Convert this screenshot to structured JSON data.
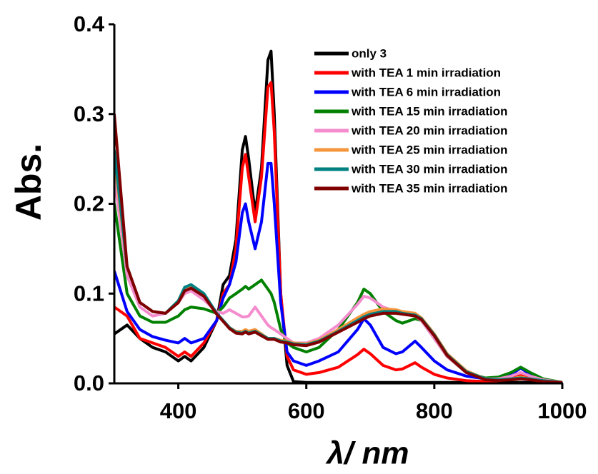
{
  "chart_data": {
    "type": "line",
    "xlabel": "λ/ nm",
    "ylabel": "Abs.",
    "xlim": [
      300,
      1000
    ],
    "xticks": [
      400,
      600,
      800,
      1000
    ],
    "ylim": [
      0,
      0.4
    ],
    "yticks": [
      {
        "value": 0,
        "label": "0.0"
      },
      0.1,
      0.2,
      0.3,
      0.4
    ],
    "legend": "upper right",
    "x": [
      300,
      320,
      340,
      360,
      380,
      400,
      410,
      420,
      440,
      460,
      470,
      480,
      490,
      500,
      505,
      510,
      520,
      530,
      540,
      545,
      550,
      560,
      570,
      580,
      600,
      620,
      650,
      680,
      690,
      700,
      720,
      740,
      750,
      770,
      780,
      800,
      820,
      850,
      880,
      900,
      920,
      935,
      950,
      970,
      1000
    ],
    "series": [
      {
        "name": "only 3",
        "color": "#000000",
        "values": [
          0.055,
          0.065,
          0.05,
          0.04,
          0.035,
          0.025,
          0.03,
          0.025,
          0.04,
          0.07,
          0.11,
          0.12,
          0.16,
          0.26,
          0.275,
          0.25,
          0.19,
          0.24,
          0.36,
          0.37,
          0.3,
          0.1,
          0.02,
          0.002,
          0.001,
          0.001,
          0.001,
          0.001,
          0.001,
          0.001,
          0.001,
          0.001,
          0.001,
          0.001,
          0.001,
          0.001,
          0.001,
          0.001,
          0.001,
          0.001,
          0.001,
          0.001,
          0.001,
          0.001,
          0.001
        ]
      },
      {
        "name": "with TEA 1 min irradiation",
        "color": "#ff0000",
        "values": [
          0.085,
          0.075,
          0.05,
          0.045,
          0.04,
          0.03,
          0.035,
          0.03,
          0.045,
          0.07,
          0.1,
          0.11,
          0.15,
          0.24,
          0.255,
          0.23,
          0.18,
          0.23,
          0.33,
          0.335,
          0.28,
          0.1,
          0.03,
          0.015,
          0.01,
          0.012,
          0.018,
          0.032,
          0.038,
          0.033,
          0.02,
          0.015,
          0.016,
          0.023,
          0.018,
          0.01,
          0.006,
          0.003,
          0.002,
          0.003,
          0.006,
          0.01,
          0.006,
          0.002,
          0.001
        ]
      },
      {
        "name": "with TEA 6 min irradiation",
        "color": "#0000ff",
        "values": [
          0.125,
          0.08,
          0.06,
          0.052,
          0.048,
          0.045,
          0.05,
          0.045,
          0.05,
          0.07,
          0.095,
          0.11,
          0.135,
          0.19,
          0.2,
          0.18,
          0.15,
          0.18,
          0.245,
          0.245,
          0.2,
          0.09,
          0.035,
          0.025,
          0.02,
          0.025,
          0.035,
          0.06,
          0.072,
          0.065,
          0.04,
          0.033,
          0.035,
          0.047,
          0.04,
          0.025,
          0.015,
          0.008,
          0.005,
          0.006,
          0.01,
          0.017,
          0.01,
          0.004,
          0.001
        ]
      },
      {
        "name": "with TEA 15 min irradiation",
        "color": "#008000",
        "values": [
          0.2,
          0.1,
          0.075,
          0.068,
          0.068,
          0.075,
          0.082,
          0.085,
          0.083,
          0.078,
          0.085,
          0.095,
          0.1,
          0.105,
          0.108,
          0.105,
          0.11,
          0.115,
          0.105,
          0.1,
          0.09,
          0.06,
          0.045,
          0.04,
          0.035,
          0.04,
          0.06,
          0.09,
          0.105,
          0.1,
          0.08,
          0.07,
          0.067,
          0.072,
          0.07,
          0.05,
          0.03,
          0.012,
          0.006,
          0.007,
          0.012,
          0.018,
          0.012,
          0.005,
          0.001
        ]
      },
      {
        "name": "with TEA 20 min irradiation",
        "color": "#f58ccd",
        "values": [
          0.23,
          0.12,
          0.085,
          0.075,
          0.078,
          0.09,
          0.1,
          0.103,
          0.093,
          0.08,
          0.078,
          0.082,
          0.078,
          0.074,
          0.074,
          0.075,
          0.085,
          0.075,
          0.065,
          0.062,
          0.06,
          0.055,
          0.05,
          0.045,
          0.045,
          0.05,
          0.065,
          0.088,
          0.097,
          0.095,
          0.085,
          0.08,
          0.078,
          0.075,
          0.07,
          0.05,
          0.03,
          0.012,
          0.005,
          0.005,
          0.008,
          0.012,
          0.008,
          0.004,
          0.001
        ]
      },
      {
        "name": "with TEA 25 min irradiation",
        "color": "#f5963c",
        "values": [
          0.25,
          0.13,
          0.09,
          0.08,
          0.078,
          0.09,
          0.103,
          0.107,
          0.098,
          0.078,
          0.07,
          0.062,
          0.058,
          0.058,
          0.06,
          0.058,
          0.06,
          0.055,
          0.05,
          0.05,
          0.05,
          0.048,
          0.047,
          0.045,
          0.044,
          0.048,
          0.06,
          0.073,
          0.077,
          0.08,
          0.083,
          0.082,
          0.08,
          0.078,
          0.073,
          0.055,
          0.033,
          0.014,
          0.005,
          0.004,
          0.005,
          0.007,
          0.005,
          0.003,
          0.001
        ]
      },
      {
        "name": "with TEA 30 min irradiation",
        "color": "#008080",
        "values": [
          0.26,
          0.13,
          0.09,
          0.08,
          0.078,
          0.092,
          0.107,
          0.11,
          0.1,
          0.078,
          0.07,
          0.062,
          0.057,
          0.056,
          0.058,
          0.056,
          0.058,
          0.054,
          0.05,
          0.05,
          0.05,
          0.047,
          0.046,
          0.044,
          0.043,
          0.047,
          0.058,
          0.07,
          0.074,
          0.077,
          0.08,
          0.08,
          0.078,
          0.076,
          0.072,
          0.054,
          0.032,
          0.013,
          0.005,
          0.004,
          0.005,
          0.006,
          0.005,
          0.003,
          0.001
        ]
      },
      {
        "name": "with TEA 35 min irradiation",
        "color": "#800000",
        "values": [
          0.3,
          0.13,
          0.09,
          0.08,
          0.078,
          0.09,
          0.103,
          0.106,
          0.097,
          0.077,
          0.069,
          0.061,
          0.056,
          0.055,
          0.057,
          0.055,
          0.057,
          0.053,
          0.049,
          0.049,
          0.049,
          0.046,
          0.045,
          0.043,
          0.042,
          0.046,
          0.057,
          0.068,
          0.072,
          0.075,
          0.078,
          0.078,
          0.077,
          0.075,
          0.071,
          0.053,
          0.031,
          0.012,
          0.004,
          0.003,
          0.004,
          0.005,
          0.004,
          0.002,
          0.001
        ]
      }
    ]
  }
}
